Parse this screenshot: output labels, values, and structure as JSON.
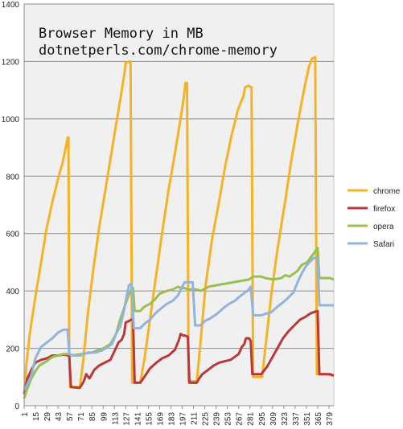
{
  "chart_data": {
    "type": "line",
    "title": "Browser Memory in MB",
    "subtitle": "dotnetperls.com/chrome-memory",
    "xlabel": "",
    "ylabel": "",
    "ylim": [
      0,
      1400
    ],
    "xlim": [
      1,
      385
    ],
    "yticks": [
      0,
      200,
      400,
      600,
      800,
      1000,
      1200,
      1400
    ],
    "xticks": [
      1,
      15,
      29,
      43,
      57,
      71,
      85,
      99,
      113,
      127,
      141,
      155,
      169,
      183,
      197,
      211,
      225,
      239,
      253,
      267,
      281,
      295,
      309,
      323,
      337,
      351,
      365,
      379
    ],
    "grid": true,
    "legend": "right",
    "series": [
      {
        "name": "chrome",
        "color": "#F5B324",
        "points": [
          [
            1,
            40
          ],
          [
            4,
            150
          ],
          [
            8,
            250
          ],
          [
            15,
            380
          ],
          [
            22,
            500
          ],
          [
            29,
            620
          ],
          [
            36,
            710
          ],
          [
            43,
            790
          ],
          [
            49,
            850
          ],
          [
            53,
            905
          ],
          [
            55,
            935
          ],
          [
            56,
            935
          ],
          [
            57,
            180
          ],
          [
            58,
            65
          ],
          [
            65,
            65
          ],
          [
            70,
            65
          ],
          [
            74,
            150
          ],
          [
            80,
            320
          ],
          [
            87,
            480
          ],
          [
            94,
            620
          ],
          [
            101,
            740
          ],
          [
            108,
            860
          ],
          [
            115,
            980
          ],
          [
            121,
            1080
          ],
          [
            125,
            1150
          ],
          [
            127,
            1195
          ],
          [
            132,
            1200
          ],
          [
            133,
            1200
          ],
          [
            135,
            80
          ],
          [
            145,
            80
          ],
          [
            150,
            160
          ],
          [
            157,
            300
          ],
          [
            165,
            460
          ],
          [
            172,
            600
          ],
          [
            180,
            750
          ],
          [
            188,
            880
          ],
          [
            195,
            1000
          ],
          [
            199,
            1075
          ],
          [
            201,
            1125
          ],
          [
            203,
            1125
          ],
          [
            205,
            85
          ],
          [
            215,
            85
          ],
          [
            219,
            200
          ],
          [
            226,
            420
          ],
          [
            234,
            580
          ],
          [
            242,
            700
          ],
          [
            250,
            830
          ],
          [
            258,
            940
          ],
          [
            266,
            1030
          ],
          [
            273,
            1080
          ],
          [
            275,
            1110
          ],
          [
            279,
            1115
          ],
          [
            283,
            1110
          ],
          [
            285,
            100
          ],
          [
            296,
            100
          ],
          [
            300,
            200
          ],
          [
            308,
            400
          ],
          [
            316,
            560
          ],
          [
            324,
            700
          ],
          [
            332,
            850
          ],
          [
            340,
            980
          ],
          [
            348,
            1100
          ],
          [
            354,
            1180
          ],
          [
            358,
            1210
          ],
          [
            362,
            1215
          ],
          [
            364,
            110
          ],
          [
            375,
            110
          ],
          [
            385,
            105
          ]
        ]
      },
      {
        "name": "firefox",
        "color": "#B9383A",
        "points": [
          [
            1,
            40
          ],
          [
            5,
            95
          ],
          [
            10,
            125
          ],
          [
            15,
            150
          ],
          [
            22,
            160
          ],
          [
            29,
            165
          ],
          [
            36,
            175
          ],
          [
            43,
            175
          ],
          [
            50,
            178
          ],
          [
            57,
            175
          ],
          [
            59,
            65
          ],
          [
            70,
            62
          ],
          [
            75,
            85
          ],
          [
            78,
            110
          ],
          [
            82,
            95
          ],
          [
            88,
            125
          ],
          [
            94,
            140
          ],
          [
            101,
            150
          ],
          [
            108,
            160
          ],
          [
            113,
            190
          ],
          [
            118,
            220
          ],
          [
            122,
            230
          ],
          [
            125,
            250
          ],
          [
            127,
            290
          ],
          [
            131,
            295
          ],
          [
            134,
            300
          ],
          [
            136,
            300
          ],
          [
            138,
            80
          ],
          [
            145,
            80
          ],
          [
            150,
            100
          ],
          [
            157,
            130
          ],
          [
            165,
            150
          ],
          [
            172,
            165
          ],
          [
            180,
            175
          ],
          [
            188,
            195
          ],
          [
            193,
            230
          ],
          [
            195,
            250
          ],
          [
            198,
            245
          ],
          [
            200,
            245
          ],
          [
            204,
            240
          ],
          [
            206,
            80
          ],
          [
            215,
            80
          ],
          [
            218,
            95
          ],
          [
            222,
            110
          ],
          [
            229,
            125
          ],
          [
            236,
            140
          ],
          [
            243,
            150
          ],
          [
            250,
            155
          ],
          [
            257,
            160
          ],
          [
            262,
            170
          ],
          [
            267,
            180
          ],
          [
            271,
            205
          ],
          [
            274,
            215
          ],
          [
            276,
            235
          ],
          [
            280,
            235
          ],
          [
            282,
            225
          ],
          [
            284,
            110
          ],
          [
            295,
            110
          ],
          [
            302,
            135
          ],
          [
            308,
            165
          ],
          [
            315,
            200
          ],
          [
            322,
            235
          ],
          [
            329,
            260
          ],
          [
            336,
            280
          ],
          [
            343,
            300
          ],
          [
            350,
            310
          ],
          [
            355,
            320
          ],
          [
            359,
            325
          ],
          [
            365,
            330
          ],
          [
            367,
            110
          ],
          [
            380,
            110
          ],
          [
            385,
            105
          ]
        ]
      },
      {
        "name": "opera",
        "color": "#9BBF4E",
        "points": [
          [
            1,
            25
          ],
          [
            5,
            60
          ],
          [
            10,
            95
          ],
          [
            15,
            120
          ],
          [
            20,
            140
          ],
          [
            29,
            155
          ],
          [
            36,
            170
          ],
          [
            43,
            175
          ],
          [
            50,
            180
          ],
          [
            57,
            180
          ],
          [
            60,
            175
          ],
          [
            71,
            180
          ],
          [
            85,
            185
          ],
          [
            99,
            200
          ],
          [
            108,
            215
          ],
          [
            115,
            250
          ],
          [
            120,
            300
          ],
          [
            125,
            340
          ],
          [
            130,
            380
          ],
          [
            133,
            400
          ],
          [
            136,
            410
          ],
          [
            138,
            330
          ],
          [
            145,
            330
          ],
          [
            150,
            345
          ],
          [
            157,
            355
          ],
          [
            163,
            370
          ],
          [
            169,
            390
          ],
          [
            178,
            400
          ],
          [
            185,
            405
          ],
          [
            192,
            415
          ],
          [
            195,
            410
          ],
          [
            200,
            410
          ],
          [
            205,
            405
          ],
          [
            215,
            405
          ],
          [
            220,
            400
          ],
          [
            230,
            415
          ],
          [
            240,
            420
          ],
          [
            250,
            425
          ],
          [
            260,
            430
          ],
          [
            270,
            435
          ],
          [
            280,
            440
          ],
          [
            285,
            450
          ],
          [
            295,
            450
          ],
          [
            300,
            445
          ],
          [
            310,
            440
          ],
          [
            320,
            445
          ],
          [
            325,
            455
          ],
          [
            330,
            450
          ],
          [
            335,
            460
          ],
          [
            340,
            470
          ],
          [
            345,
            490
          ],
          [
            352,
            500
          ],
          [
            360,
            530
          ],
          [
            365,
            550
          ],
          [
            367,
            445
          ],
          [
            380,
            445
          ],
          [
            385,
            440
          ]
        ]
      },
      {
        "name": "Safari",
        "color": "#92B3DE",
        "points": [
          [
            1,
            55
          ],
          [
            5,
            75
          ],
          [
            10,
            105
          ],
          [
            15,
            165
          ],
          [
            22,
            205
          ],
          [
            29,
            220
          ],
          [
            36,
            235
          ],
          [
            43,
            255
          ],
          [
            50,
            265
          ],
          [
            55,
            265
          ],
          [
            57,
            180
          ],
          [
            62,
            175
          ],
          [
            71,
            175
          ],
          [
            80,
            185
          ],
          [
            90,
            185
          ],
          [
            99,
            195
          ],
          [
            105,
            205
          ],
          [
            110,
            215
          ],
          [
            115,
            250
          ],
          [
            120,
            275
          ],
          [
            124,
            320
          ],
          [
            128,
            380
          ],
          [
            131,
            420
          ],
          [
            134,
            425
          ],
          [
            137,
            270
          ],
          [
            145,
            270
          ],
          [
            150,
            285
          ],
          [
            157,
            300
          ],
          [
            163,
            320
          ],
          [
            169,
            335
          ],
          [
            178,
            355
          ],
          [
            185,
            365
          ],
          [
            192,
            385
          ],
          [
            197,
            415
          ],
          [
            200,
            430
          ],
          [
            205,
            430
          ],
          [
            210,
            430
          ],
          [
            213,
            280
          ],
          [
            220,
            280
          ],
          [
            225,
            295
          ],
          [
            232,
            305
          ],
          [
            240,
            320
          ],
          [
            248,
            340
          ],
          [
            255,
            355
          ],
          [
            262,
            365
          ],
          [
            268,
            380
          ],
          [
            275,
            395
          ],
          [
            278,
            400
          ],
          [
            282,
            415
          ],
          [
            285,
            315
          ],
          [
            295,
            315
          ],
          [
            300,
            320
          ],
          [
            307,
            325
          ],
          [
            315,
            345
          ],
          [
            322,
            360
          ],
          [
            328,
            375
          ],
          [
            335,
            395
          ],
          [
            340,
            430
          ],
          [
            345,
            460
          ],
          [
            350,
            485
          ],
          [
            355,
            500
          ],
          [
            360,
            515
          ],
          [
            365,
            515
          ],
          [
            367,
            350
          ],
          [
            380,
            350
          ],
          [
            385,
            350
          ]
        ]
      }
    ]
  }
}
